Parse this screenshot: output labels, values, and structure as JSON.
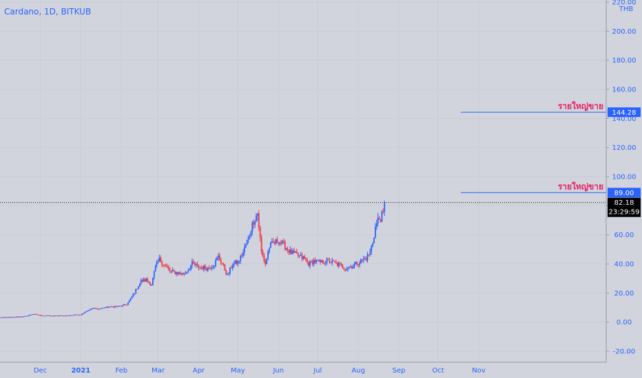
{
  "chart_data": {
    "type": "candlestick",
    "title": "Cardano, 1D, BITKUB",
    "currency": "THB",
    "y_ticks": [
      "220.00",
      "200.00",
      "180.00",
      "160.00",
      "140.00",
      "120.00",
      "100.00",
      "80.00",
      "60.00",
      "40.00",
      "20.00",
      "0.00",
      "-20.00"
    ],
    "x_ticks": [
      {
        "label": "Dec",
        "date": "2020-12-01"
      },
      {
        "label": "2021",
        "date": "2021-01-01",
        "bold": true
      },
      {
        "label": "Feb",
        "date": "2021-02-01"
      },
      {
        "label": "Mar",
        "date": "2021-03-01"
      },
      {
        "label": "Apr",
        "date": "2021-04-01"
      },
      {
        "label": "May",
        "date": "2021-05-01"
      },
      {
        "label": "Jun",
        "date": "2021-06-01"
      },
      {
        "label": "Jul",
        "date": "2021-07-01"
      },
      {
        "label": "Aug",
        "date": "2021-08-01"
      },
      {
        "label": "Sep",
        "date": "2021-09-01"
      },
      {
        "label": "Oct",
        "date": "2021-10-01"
      },
      {
        "label": "Nov",
        "date": "2021-11-01"
      }
    ],
    "ylim": [
      -20,
      220
    ],
    "last_price": "82.18",
    "countdown": "23:29:59",
    "up_color": "#2962ff",
    "down_color": "#f23645",
    "horizontal_lines": [
      {
        "price": 144.28,
        "label": "144.28",
        "annotation": "รายใหญ่ขาย"
      },
      {
        "price": 89.0,
        "label": "89.00",
        "annotation": "รายใหญ่ขาย"
      }
    ],
    "price_path": [
      [
        "2020-11-01",
        3.1
      ],
      [
        "2020-11-10",
        3.3
      ],
      [
        "2020-11-20",
        4.0
      ],
      [
        "2020-11-25",
        5.5
      ],
      [
        "2020-12-01",
        4.6
      ],
      [
        "2020-12-10",
        4.2
      ],
      [
        "2020-12-20",
        4.3
      ],
      [
        "2020-12-28",
        5.0
      ],
      [
        "2021-01-01",
        5.2
      ],
      [
        "2021-01-05",
        7.5
      ],
      [
        "2021-01-10",
        9.5
      ],
      [
        "2021-01-15",
        9.0
      ],
      [
        "2021-01-20",
        10.2
      ],
      [
        "2021-01-25",
        10.5
      ],
      [
        "2021-01-31",
        11.0
      ],
      [
        "2021-02-05",
        12.0
      ],
      [
        "2021-02-08",
        16.0
      ],
      [
        "2021-02-12",
        22.0
      ],
      [
        "2021-02-16",
        28.0
      ],
      [
        "2021-02-20",
        29.0
      ],
      [
        "2021-02-24",
        26.0
      ],
      [
        "2021-02-27",
        38.0
      ],
      [
        "2021-03-02",
        43.0
      ],
      [
        "2021-03-05",
        40.0
      ],
      [
        "2021-03-10",
        35.0
      ],
      [
        "2021-03-15",
        34.0
      ],
      [
        "2021-03-20",
        33.0
      ],
      [
        "2021-03-24",
        36.0
      ],
      [
        "2021-03-27",
        40.0
      ],
      [
        "2021-04-01",
        38.0
      ],
      [
        "2021-04-08",
        37.0
      ],
      [
        "2021-04-13",
        40.0
      ],
      [
        "2021-04-16",
        45.0
      ],
      [
        "2021-04-19",
        40.0
      ],
      [
        "2021-04-23",
        32.0
      ],
      [
        "2021-04-27",
        40.0
      ],
      [
        "2021-05-01",
        41.0
      ],
      [
        "2021-05-05",
        48.0
      ],
      [
        "2021-05-09",
        58.0
      ],
      [
        "2021-05-13",
        70.0
      ],
      [
        "2021-05-16",
        75.0
      ],
      [
        "2021-05-19",
        48.0
      ],
      [
        "2021-05-22",
        40.0
      ],
      [
        "2021-05-25",
        52.0
      ],
      [
        "2021-05-28",
        54.0
      ],
      [
        "2021-06-01",
        56.0
      ],
      [
        "2021-06-05",
        53.0
      ],
      [
        "2021-06-10",
        48.0
      ],
      [
        "2021-06-15",
        46.0
      ],
      [
        "2021-06-20",
        44.0
      ],
      [
        "2021-06-24",
        40.0
      ],
      [
        "2021-06-28",
        42.0
      ],
      [
        "2021-07-03",
        41.0
      ],
      [
        "2021-07-08",
        42.0
      ],
      [
        "2021-07-13",
        41.0
      ],
      [
        "2021-07-18",
        39.0
      ],
      [
        "2021-07-22",
        37.0
      ],
      [
        "2021-07-26",
        38.0
      ],
      [
        "2021-07-30",
        40.0
      ],
      [
        "2021-08-03",
        42.0
      ],
      [
        "2021-08-07",
        44.0
      ],
      [
        "2021-08-10",
        48.0
      ],
      [
        "2021-08-12",
        55.0
      ],
      [
        "2021-08-14",
        65.0
      ],
      [
        "2021-08-16",
        70.0
      ],
      [
        "2021-08-18",
        72.0
      ],
      [
        "2021-08-20",
        74.0
      ],
      [
        "2021-08-21",
        82.18
      ]
    ]
  }
}
